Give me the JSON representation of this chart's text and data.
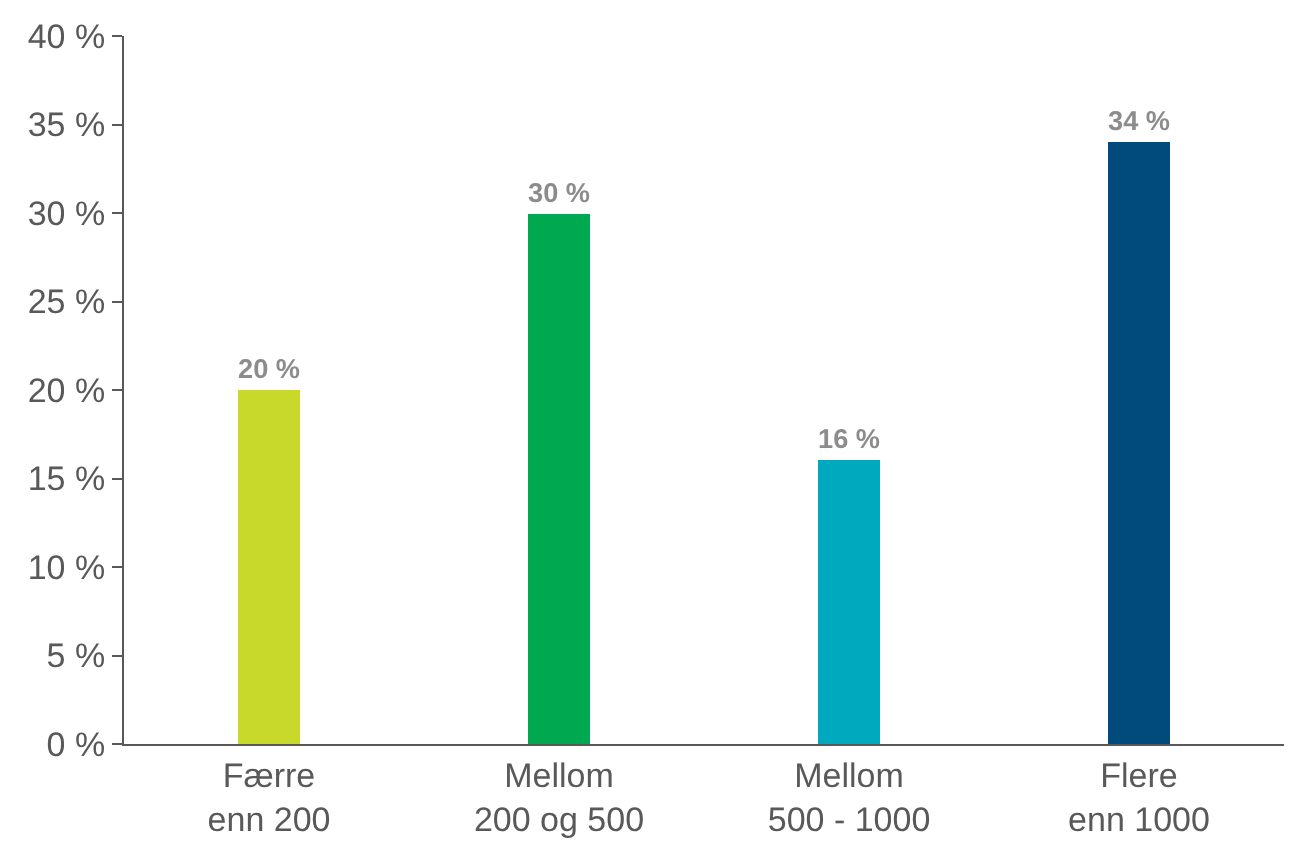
{
  "chart_data": {
    "type": "bar",
    "categories": [
      "Færre\nenn 200",
      "Mellom\n200 og 500",
      "Mellom\n500 - 1000",
      "Flere\nenn 1000"
    ],
    "values": [
      20,
      30,
      16,
      34
    ],
    "colors": [
      "#c8d92b",
      "#00a950",
      "#00a9bd",
      "#004a7c"
    ],
    "value_labels": [
      "20 %",
      "30 %",
      "16 %",
      "34 %"
    ],
    "ylim": [
      0,
      40
    ],
    "yticks": [
      {
        "value": 0,
        "label": "0 %"
      },
      {
        "value": 5,
        "label": "5 %"
      },
      {
        "value": 10,
        "label": "10 %"
      },
      {
        "value": 15,
        "label": "15 %"
      },
      {
        "value": 20,
        "label": "20 %"
      },
      {
        "value": 25,
        "label": "25 %"
      },
      {
        "value": 30,
        "label": "30 %"
      },
      {
        "value": 35,
        "label": "35 %"
      },
      {
        "value": 40,
        "label": "40 %"
      }
    ],
    "legend": false
  }
}
